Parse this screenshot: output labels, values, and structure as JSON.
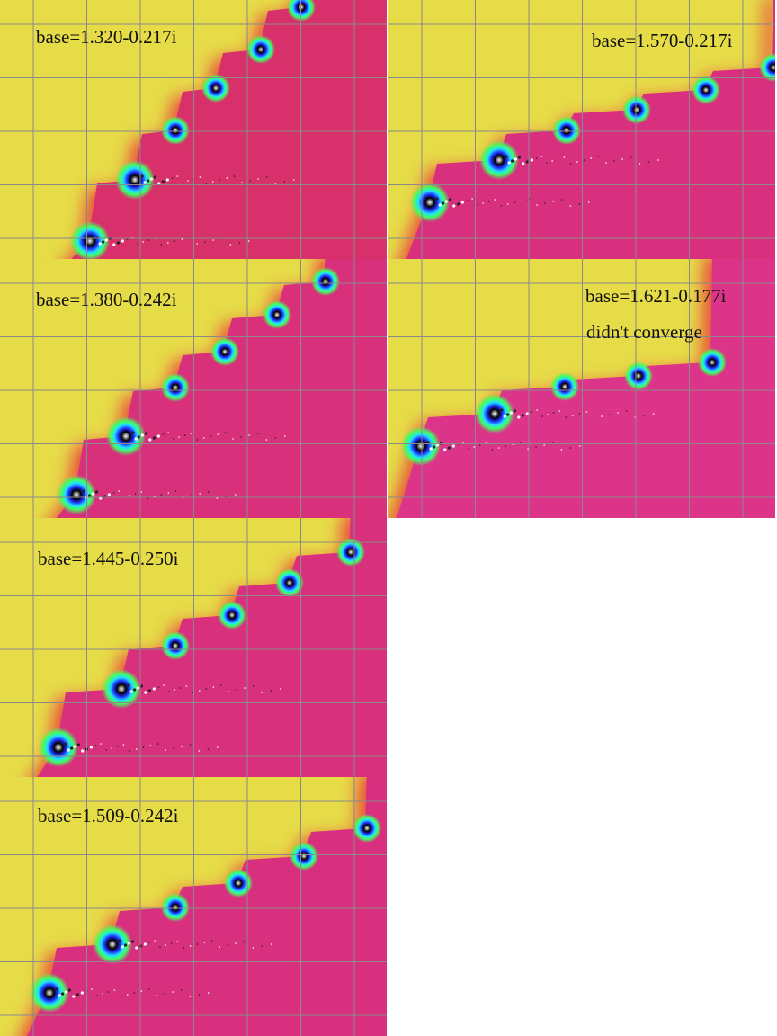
{
  "panels": [
    {
      "label": "base=1.320-0.217i"
    },
    {
      "label": "base=1.570-0.217i"
    },
    {
      "label": "base=1.380-0.242i"
    },
    {
      "label": "base=1.621-0.177i",
      "note": "didn't converge"
    },
    {
      "label": "base=1.445-0.250i"
    },
    {
      "label": "base=1.509-0.242i"
    }
  ]
}
